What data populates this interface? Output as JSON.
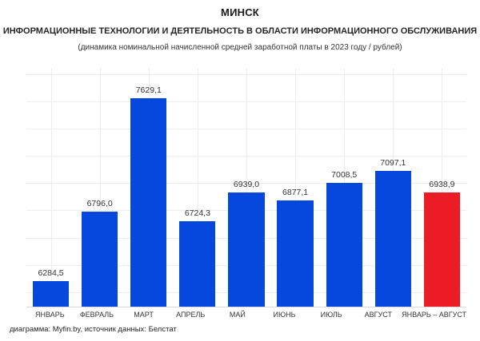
{
  "header": {
    "title": "МИНСК",
    "subtitle": "ИНФОРМАЦИОННЫЕ ТЕХНОЛОГИИ И ДЕЯТЕЛЬНОСТЬ В ОБЛАСТИ ИНФОРМАЦИОННОГО ОБСЛУЖИВАНИЯ",
    "caption": "(динамика номинальной начисленной средней заработной платы в 2023 году / рублей)"
  },
  "chart_data": {
    "type": "bar",
    "title": "МИНСК",
    "categories": [
      "ЯНВАРЬ",
      "ФЕВРАЛЬ",
      "МАРТ",
      "АПРЕЛЬ",
      "МАЙ",
      "ИЮНЬ",
      "ИЮЛЬ",
      "АВГУСТ",
      "ЯНВАРЬ – АВГУСТ"
    ],
    "values": [
      6284.5,
      6796.0,
      7629.1,
      6724.3,
      6939.0,
      6877.1,
      7008.5,
      7097.1,
      6938.9
    ],
    "value_labels": [
      "6284,5",
      "6796,0",
      "7629,1",
      "6724,3",
      "6939,0",
      "6877,1",
      "7008,5",
      "7097,1",
      "6938,9"
    ],
    "xlabel": "",
    "ylabel": "",
    "ylim": [
      6100,
      7850
    ],
    "gridline_start": 6200,
    "gridline_step": 200,
    "grid": true,
    "legend_position": "none",
    "highlight_index": 8
  },
  "colors": {
    "bar_blue": "#0647DE",
    "bar_red": "#EC1C26",
    "gridline": "#EDEDED",
    "axis_line": "#D9D9D9",
    "text_dark": "#262626"
  },
  "footer": {
    "credit": "диаграмма: Myfin.by, источник данных: Белстат"
  }
}
